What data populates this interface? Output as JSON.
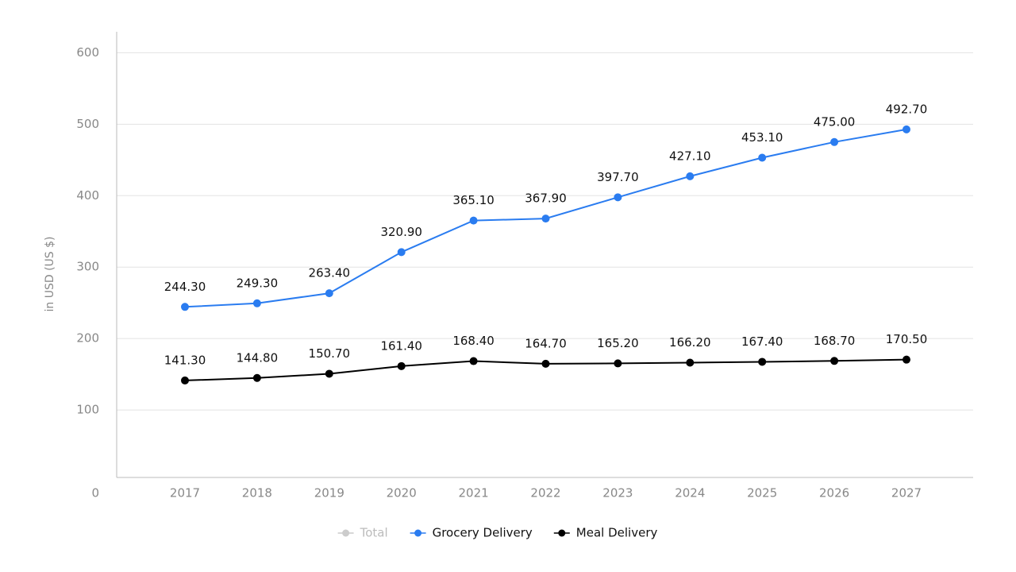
{
  "chart_data": {
    "type": "line",
    "y_label": "in USD (US $)",
    "categories": [
      "2017",
      "2018",
      "2019",
      "2020",
      "2021",
      "2022",
      "2023",
      "2024",
      "2025",
      "2026",
      "2027"
    ],
    "series": [
      {
        "name": "Total",
        "color": "#cccccc",
        "values": [
          null,
          null,
          null,
          null,
          null,
          null,
          null,
          null,
          null,
          null,
          null
        ]
      },
      {
        "name": "Grocery Delivery",
        "color": "#2a7cf0",
        "values": [
          244.3,
          249.3,
          263.4,
          320.9,
          365.1,
          367.9,
          397.7,
          427.1,
          453.1,
          475.0,
          492.7
        ],
        "value_labels": [
          "244.30",
          "249.30",
          "263.40",
          "320.90",
          "365.10",
          "367.90",
          "397.70",
          "427.10",
          "453.10",
          "475.00",
          "492.70"
        ]
      },
      {
        "name": "Meal Delivery",
        "color": "#000000",
        "values": [
          141.3,
          144.8,
          150.7,
          161.4,
          168.4,
          164.7,
          165.2,
          166.2,
          167.4,
          168.7,
          170.5
        ],
        "value_labels": [
          "141.30",
          "144.80",
          "150.70",
          "161.40",
          "168.40",
          "164.70",
          "165.20",
          "166.20",
          "167.40",
          "168.70",
          "170.50"
        ]
      }
    ],
    "ylim": [
      0,
      626
    ],
    "yticks": [
      0,
      100,
      200,
      300,
      400,
      500,
      600
    ],
    "grid": true
  }
}
